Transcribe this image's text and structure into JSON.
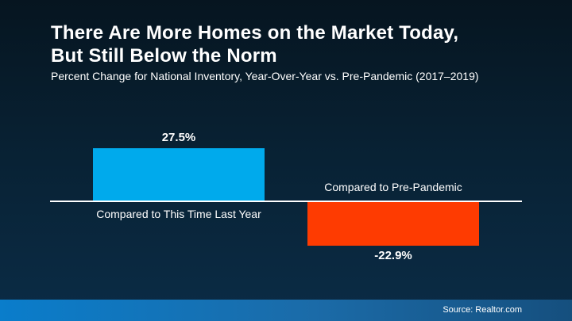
{
  "header": {
    "title_line1": "There Are More Homes on the Market Today,",
    "title_line2": "But Still Below the Norm",
    "subtitle": "Percent Change for National Inventory, Year-Over-Year vs. Pre-Pandemic (2017–2019)"
  },
  "chart_data": {
    "type": "bar",
    "title": "There Are More Homes on the Market Today, But Still Below the Norm",
    "subtitle": "Percent Change for National Inventory, Year-Over-Year vs. Pre-Pandemic (2017–2019)",
    "categories": [
      "Compared to This Time Last Year",
      "Compared to Pre-Pandemic"
    ],
    "values": [
      27.5,
      -22.9
    ],
    "value_labels": [
      "27.5%",
      "-22.9%"
    ],
    "bar_colors": [
      "#00aaec",
      "#fe3b01"
    ],
    "xlabel": "",
    "ylabel": "",
    "ylim": [
      -30,
      35
    ],
    "grid": false,
    "legend": false,
    "axis_color": "#ffffff"
  },
  "footer": {
    "source": "Source: Realtor.com"
  },
  "colors": {
    "background_top": "#061520",
    "background_bottom": "#0b2c46",
    "bar_positive": "#00aaec",
    "bar_negative": "#fe3b01",
    "axis": "#ffffff",
    "footer_gradient_left": "#0a7dcb",
    "footer_gradient_right": "#154f7e",
    "text": "#ffffff"
  }
}
